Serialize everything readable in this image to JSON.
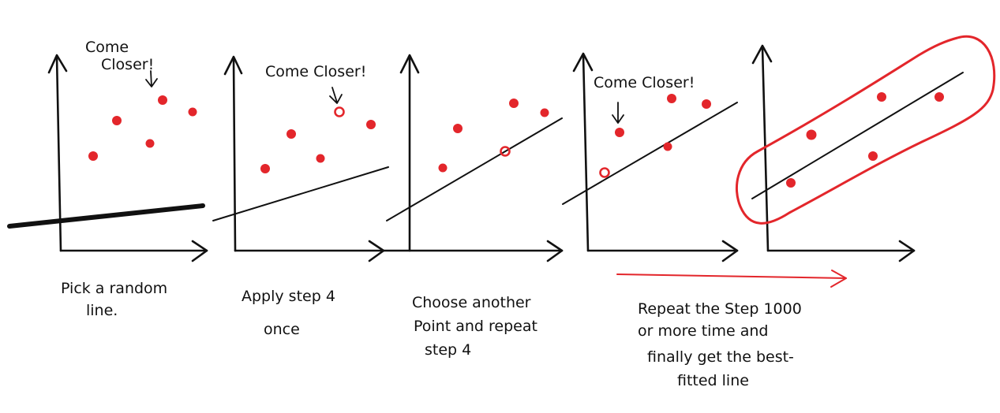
{
  "panels": [
    {
      "id": "panel-1",
      "callout": [
        "Come",
        "Closer!"
      ],
      "caption": [
        "Pick a random",
        "line."
      ]
    },
    {
      "id": "panel-2",
      "callout": [
        "Come Closer!"
      ],
      "caption": [
        "Apply step 4",
        "once"
      ]
    },
    {
      "id": "panel-3",
      "callout": [],
      "caption": [
        "Choose another",
        "Point and repeat",
        "step 4"
      ]
    },
    {
      "id": "panel-4",
      "callout": [
        "Come Closer!"
      ],
      "caption": []
    },
    {
      "id": "panel-5",
      "callout": [],
      "caption": []
    }
  ],
  "final_caption": [
    "Repeat the Step 1000",
    "or more time and",
    "finally get the best-",
    "fitted line"
  ],
  "colors": {
    "point": "#e3262b",
    "ink": "#111111",
    "highlight": "#e3262b"
  }
}
